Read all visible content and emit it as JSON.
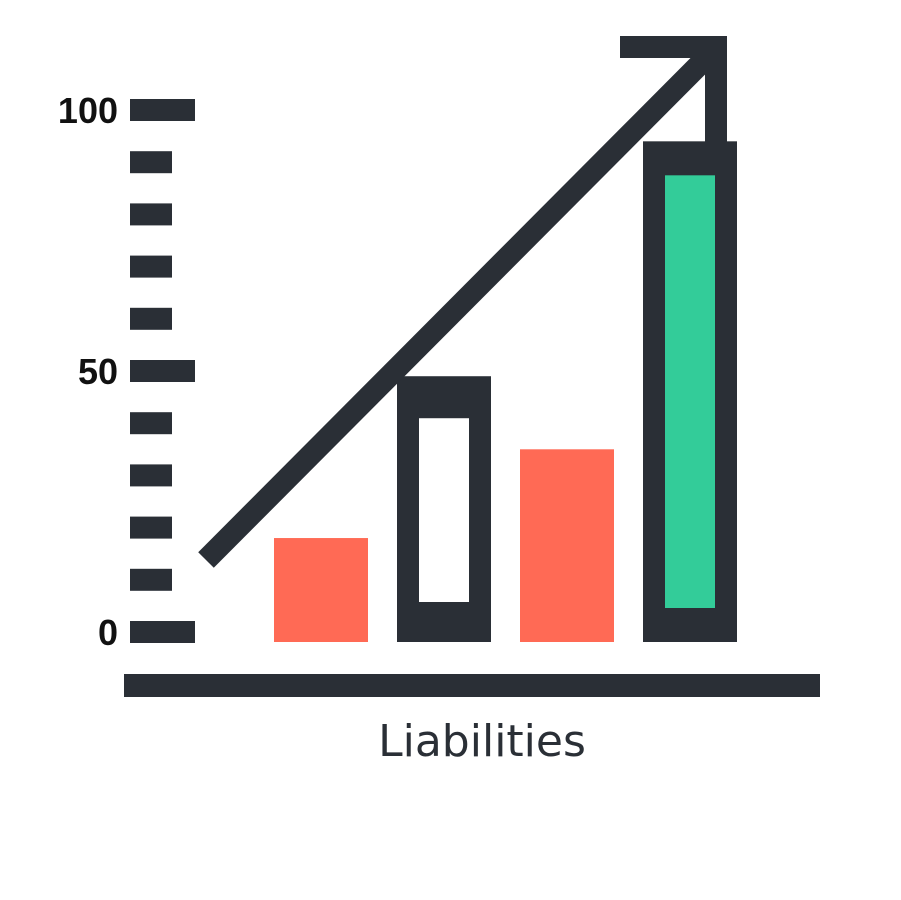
{
  "chart_data": {
    "type": "bar",
    "title": "",
    "xlabel": "Liabilities",
    "ylabel": "",
    "ylim": [
      0,
      100
    ],
    "yticks": [
      0,
      50,
      100
    ],
    "minor_tick_step": 10,
    "grid": false,
    "trend_arrow": true,
    "bars": [
      {
        "value": 18,
        "style": "solid",
        "fill": "#ff6a55"
      },
      {
        "value": 49,
        "style": "outlined",
        "outline": "#2a2f36",
        "inner_fill": "#ffffff"
      },
      {
        "value": 35,
        "style": "solid",
        "fill": "#ff6a55"
      },
      {
        "value": 94,
        "style": "outlined",
        "outline": "#2a2f36",
        "inner_fill": "#33cc99"
      }
    ]
  },
  "colors": {
    "dark": "#2a2f36",
    "coral": "#ff6a55",
    "green": "#33cc99",
    "background": "#ffffff"
  }
}
